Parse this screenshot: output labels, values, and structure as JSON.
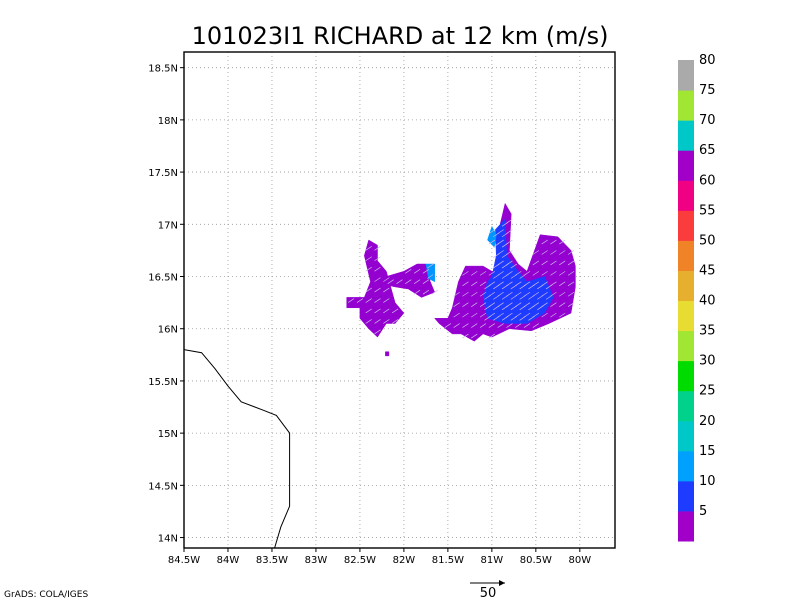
{
  "chart_data": {
    "type": "heatmap",
    "title": "101023I1 RICHARD at 12 km (m/s)",
    "xlim": [
      -84.5,
      -79.6
    ],
    "ylim": [
      13.9,
      18.65
    ],
    "x_ticks": [
      {
        "v": -84.5,
        "label": "84.5W"
      },
      {
        "v": -84.0,
        "label": "84W"
      },
      {
        "v": -83.5,
        "label": "83.5W"
      },
      {
        "v": -83.0,
        "label": "83W"
      },
      {
        "v": -82.5,
        "label": "82.5W"
      },
      {
        "v": -82.0,
        "label": "82W"
      },
      {
        "v": -81.5,
        "label": "81.5W"
      },
      {
        "v": -81.0,
        "label": "81W"
      },
      {
        "v": -80.5,
        "label": "80.5W"
      },
      {
        "v": -80.0,
        "label": "80W"
      }
    ],
    "y_ticks": [
      {
        "v": 14.0,
        "label": "14N"
      },
      {
        "v": 14.5,
        "label": "14.5N"
      },
      {
        "v": 15.0,
        "label": "15N"
      },
      {
        "v": 15.5,
        "label": "15.5N"
      },
      {
        "v": 16.0,
        "label": "16N"
      },
      {
        "v": 16.5,
        "label": "16.5N"
      },
      {
        "v": 17.0,
        "label": "17N"
      },
      {
        "v": 17.5,
        "label": "17.5N"
      },
      {
        "v": 18.0,
        "label": "18N"
      },
      {
        "v": 18.5,
        "label": "18.5N"
      }
    ],
    "grid": true,
    "coastline": [
      [
        -84.5,
        15.8
      ],
      [
        -84.3,
        15.77
      ],
      [
        -84.15,
        15.62
      ],
      [
        -84.0,
        15.45
      ],
      [
        -83.85,
        15.3
      ],
      [
        -83.6,
        15.22
      ],
      [
        -83.45,
        15.17
      ],
      [
        -83.3,
        15.0
      ],
      [
        -83.3,
        14.8
      ],
      [
        -83.3,
        14.5
      ],
      [
        -83.3,
        14.3
      ],
      [
        -83.4,
        14.1
      ],
      [
        -83.47,
        13.9
      ]
    ],
    "wind_regions": [
      {
        "level": 5,
        "color": "#9400d0",
        "polygon": [
          [
            -82.5,
            16.2
          ],
          [
            -82.5,
            16.1
          ],
          [
            -82.4,
            16.0
          ],
          [
            -82.3,
            15.92
          ],
          [
            -82.2,
            16.05
          ],
          [
            -82.1,
            16.05
          ],
          [
            -82.0,
            16.15
          ],
          [
            -82.1,
            16.25
          ],
          [
            -82.15,
            16.4
          ],
          [
            -82.2,
            16.55
          ],
          [
            -82.3,
            16.65
          ],
          [
            -82.3,
            16.8
          ],
          [
            -82.4,
            16.85
          ],
          [
            -82.45,
            16.7
          ],
          [
            -82.38,
            16.45
          ],
          [
            -82.45,
            16.3
          ],
          [
            -82.65,
            16.3
          ],
          [
            -82.65,
            16.2
          ]
        ]
      },
      {
        "level": 5,
        "color": "#9400d0",
        "polygon": [
          [
            -82.2,
            16.5
          ],
          [
            -82.0,
            16.55
          ],
          [
            -81.85,
            16.62
          ],
          [
            -81.75,
            16.62
          ],
          [
            -81.7,
            16.45
          ],
          [
            -81.65,
            16.35
          ],
          [
            -81.8,
            16.3
          ],
          [
            -81.95,
            16.38
          ],
          [
            -82.1,
            16.4
          ],
          [
            -82.2,
            16.42
          ]
        ]
      },
      {
        "level": 5,
        "color": "#9400d0",
        "polygon": [
          [
            -81.5,
            16.1
          ],
          [
            -81.45,
            16.2
          ],
          [
            -81.38,
            16.45
          ],
          [
            -81.3,
            16.6
          ],
          [
            -81.1,
            16.6
          ],
          [
            -81.0,
            16.55
          ],
          [
            -80.95,
            16.55
          ],
          [
            -80.92,
            16.95
          ],
          [
            -80.85,
            17.2
          ],
          [
            -80.78,
            17.1
          ],
          [
            -80.8,
            16.75
          ],
          [
            -80.7,
            16.62
          ],
          [
            -80.6,
            16.55
          ],
          [
            -80.45,
            16.9
          ],
          [
            -80.25,
            16.88
          ],
          [
            -80.1,
            16.75
          ],
          [
            -80.05,
            16.6
          ],
          [
            -80.05,
            16.4
          ],
          [
            -80.1,
            16.15
          ],
          [
            -80.35,
            16.05
          ],
          [
            -80.55,
            15.98
          ],
          [
            -80.8,
            16.0
          ],
          [
            -81.0,
            15.92
          ],
          [
            -81.1,
            15.95
          ],
          [
            -81.2,
            15.88
          ],
          [
            -81.35,
            15.95
          ],
          [
            -81.45,
            15.95
          ],
          [
            -81.6,
            16.05
          ],
          [
            -81.65,
            16.1
          ]
        ]
      },
      {
        "level": 15,
        "color": "#1e3cff",
        "polygon": [
          [
            -81.0,
            16.5
          ],
          [
            -80.95,
            16.7
          ],
          [
            -80.96,
            16.95
          ],
          [
            -80.85,
            17.05
          ],
          [
            -80.83,
            16.7
          ],
          [
            -80.7,
            16.55
          ],
          [
            -80.6,
            16.45
          ],
          [
            -80.4,
            16.5
          ],
          [
            -80.3,
            16.3
          ],
          [
            -80.4,
            16.15
          ],
          [
            -80.6,
            16.05
          ],
          [
            -80.85,
            16.05
          ],
          [
            -81.05,
            16.1
          ],
          [
            -81.1,
            16.3
          ],
          [
            -81.05,
            16.45
          ]
        ]
      },
      {
        "level": 20,
        "color": "#0096ff",
        "polygon": [
          [
            -81.05,
            16.85
          ],
          [
            -81.0,
            16.98
          ],
          [
            -80.95,
            16.9
          ],
          [
            -80.97,
            16.78
          ]
        ]
      },
      {
        "level": 20,
        "color": "#0096ff",
        "polygon": [
          [
            -81.75,
            16.62
          ],
          [
            -81.65,
            16.62
          ],
          [
            -81.65,
            16.45
          ],
          [
            -81.72,
            16.48
          ]
        ]
      },
      {
        "level": 5,
        "color": "#9400d0",
        "polygon": [
          [
            -82.21,
            15.78
          ],
          [
            -82.17,
            15.78
          ],
          [
            -82.17,
            15.74
          ],
          [
            -82.21,
            15.74
          ]
        ]
      }
    ],
    "vector_reference": {
      "label": "50"
    },
    "colorbar": {
      "colors": [
        "#a000c8",
        "#1e3cff",
        "#00a0ff",
        "#00c8c8",
        "#00d28c",
        "#00dc00",
        "#a0e632",
        "#e6dc32",
        "#e6af2d",
        "#f08228",
        "#fa3c3c",
        "#f00082",
        "#a000c8",
        "#00c8c8",
        "#a0e632",
        "#aaaaaa"
      ],
      "labels": [
        "5",
        "10",
        "15",
        "20",
        "25",
        "30",
        "35",
        "40",
        "45",
        "50",
        "55",
        "60",
        "65",
        "70",
        "75",
        "80"
      ]
    },
    "credit": "GrADS: COLA/IGES"
  }
}
